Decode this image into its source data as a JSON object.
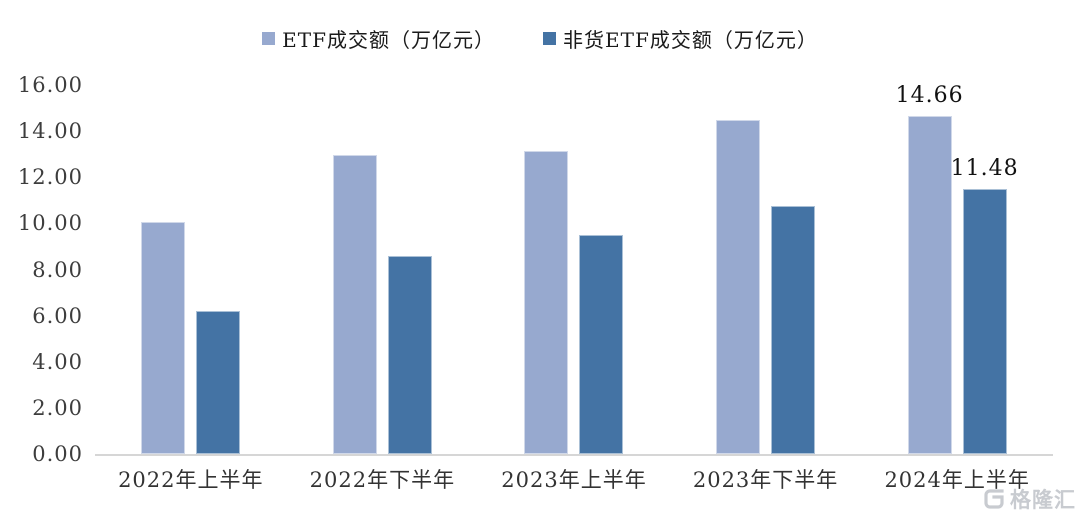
{
  "chart_data": {
    "type": "bar",
    "title": "",
    "categories": [
      "2022年上半年",
      "2022年下半年",
      "2023年上半年",
      "2023年下半年",
      "2024年上半年"
    ],
    "series": [
      {
        "name": "ETF成交额（万亿元）",
        "color": "#97A9CF",
        "values": [
          10.05,
          12.95,
          13.15,
          14.5,
          14.66
        ],
        "data_labels": [
          null,
          null,
          null,
          null,
          "14.66"
        ]
      },
      {
        "name": "非货ETF成交额（万亿元）",
        "color": "#4473A4",
        "values": [
          6.2,
          8.6,
          9.5,
          10.75,
          11.48
        ],
        "data_labels": [
          null,
          null,
          null,
          null,
          "11.48"
        ]
      }
    ],
    "ylim": [
      0,
      16
    ],
    "yticks": [
      "0.00",
      "2.00",
      "4.00",
      "6.00",
      "8.00",
      "10.00",
      "12.00",
      "14.00",
      "16.00"
    ],
    "grid": false,
    "legend_position": "top",
    "axis_line_color": "#D6D6D6"
  },
  "watermark": {
    "text": "格隆汇"
  }
}
